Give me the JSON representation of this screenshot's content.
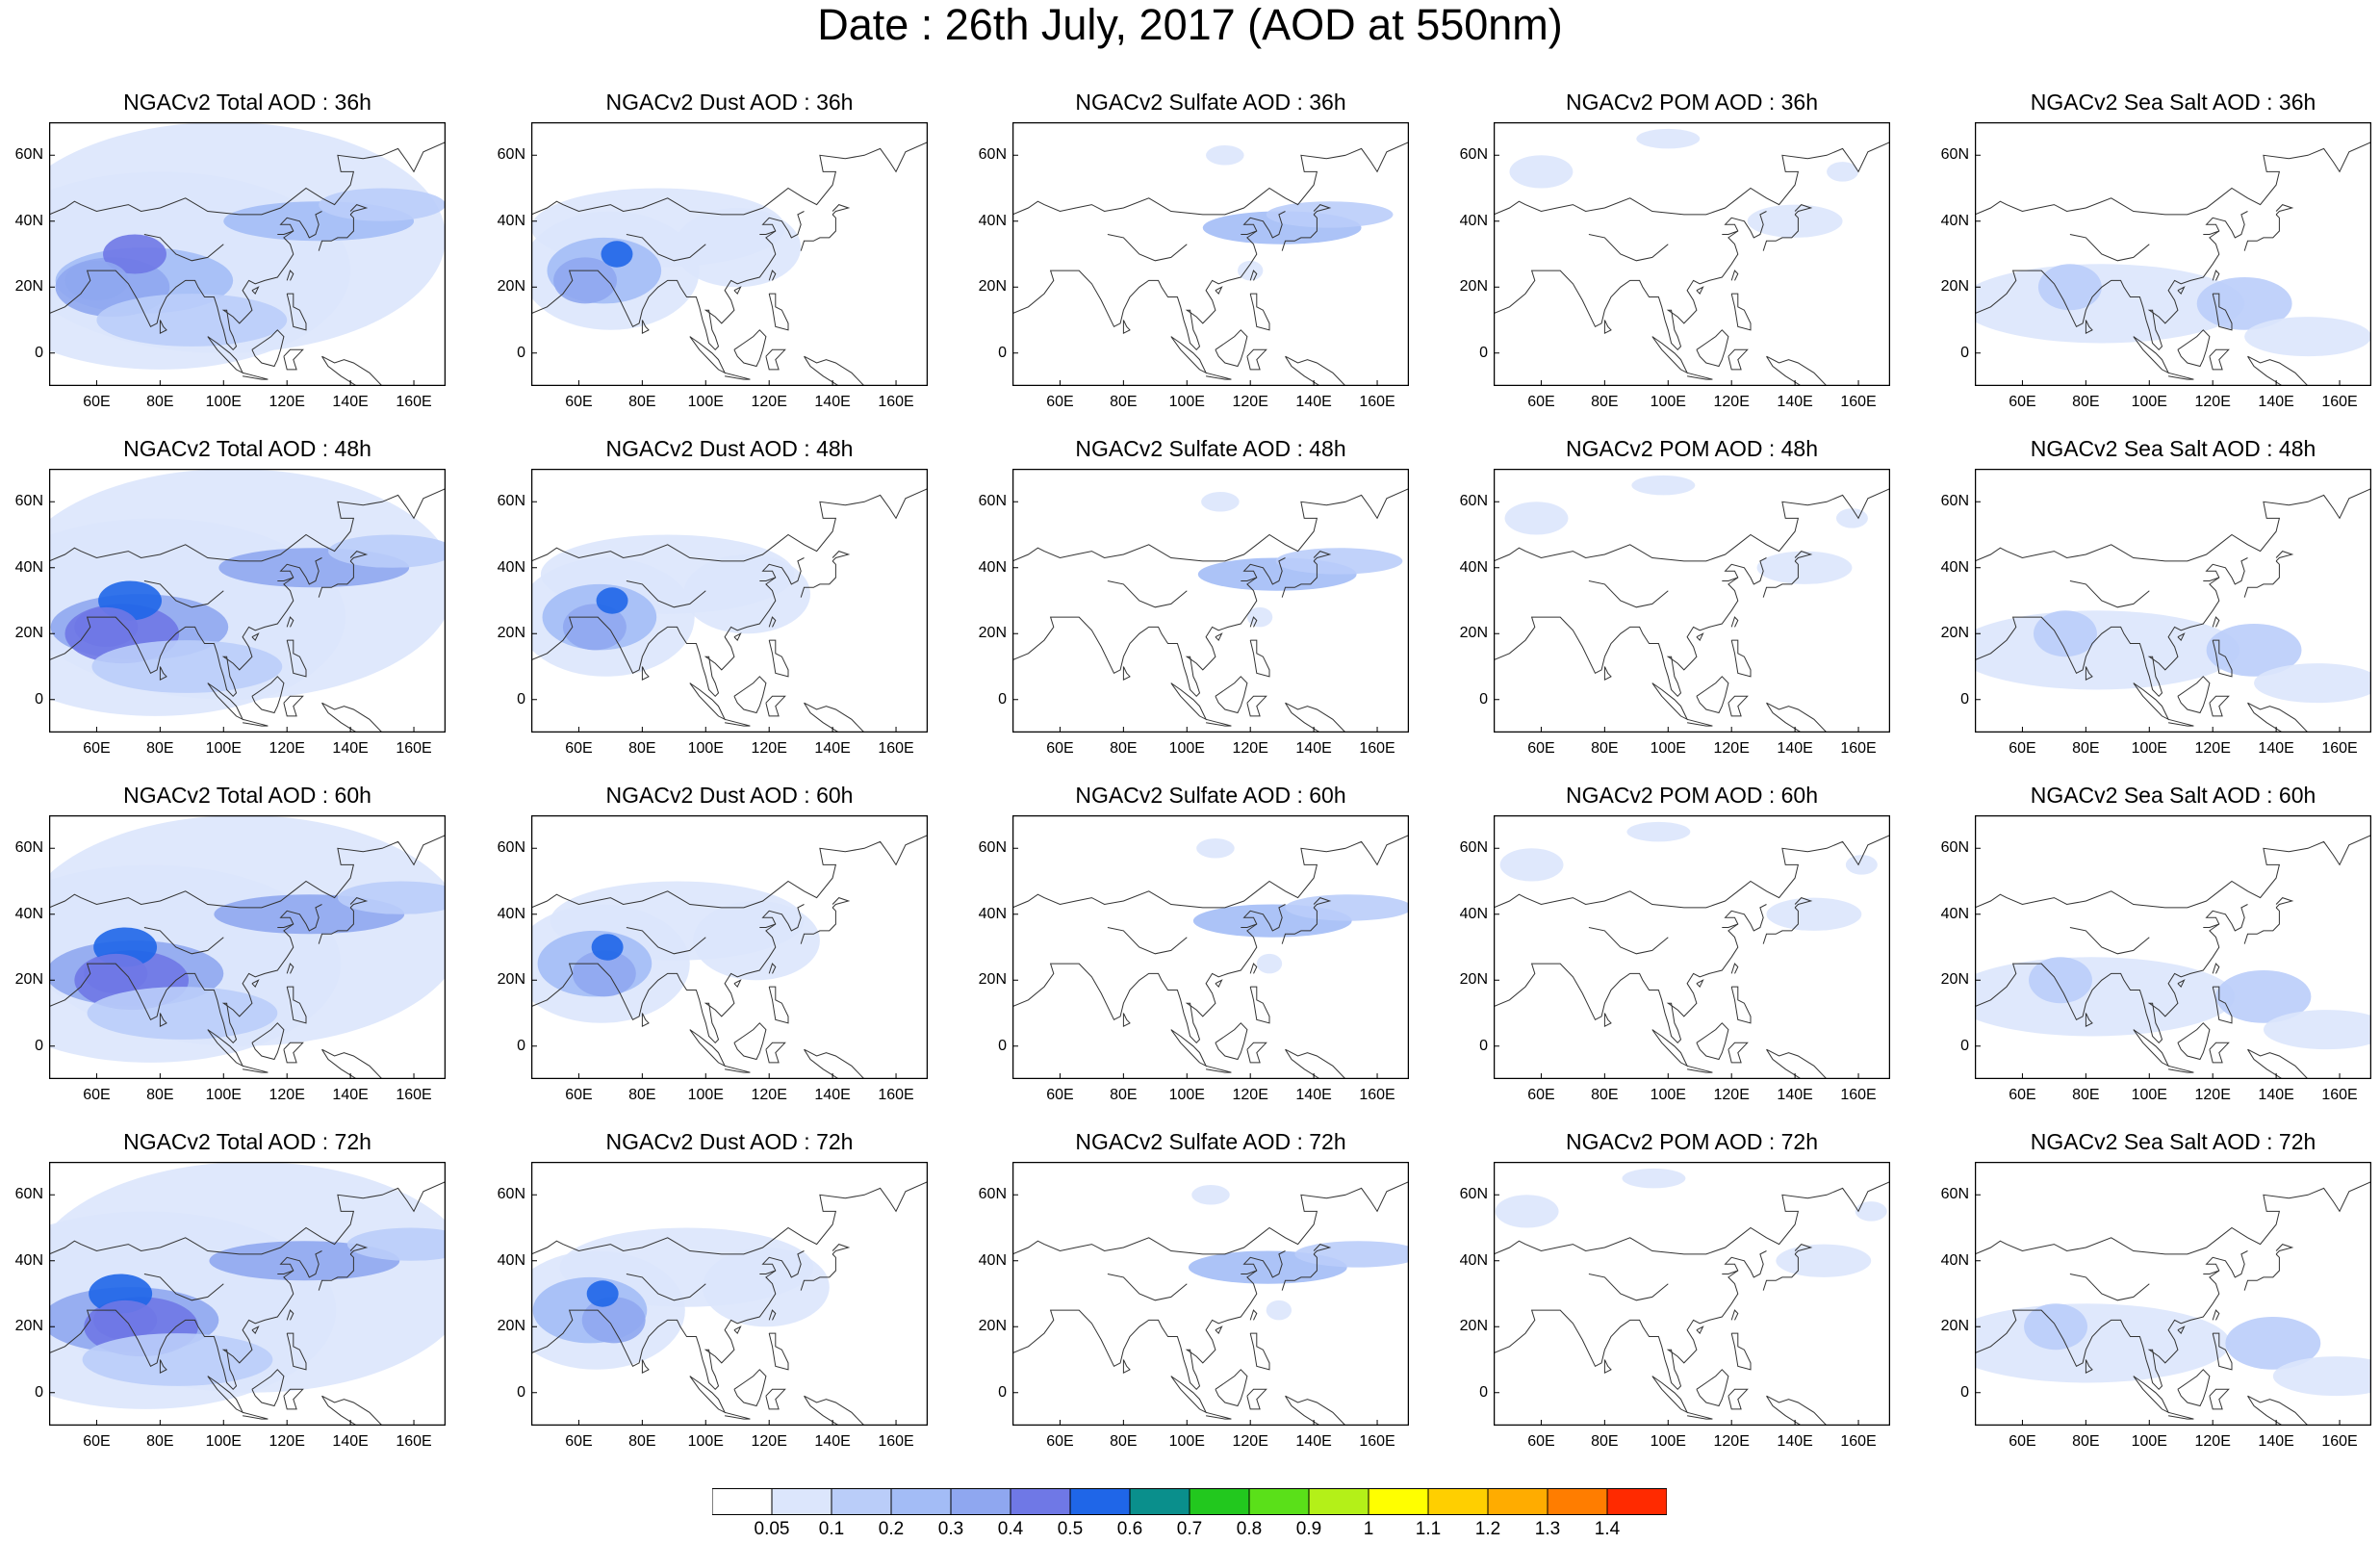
{
  "figure": {
    "title": "Date : 26th July, 2017 (AOD at 550nm)"
  },
  "panels": [
    [
      "NGACv2 Total AOD : 36h",
      "NGACv2 Dust AOD : 36h",
      "NGACv2 Sulfate AOD : 36h",
      "NGACv2 POM AOD : 36h",
      "NGACv2 Sea Salt AOD : 36h"
    ],
    [
      "NGACv2 Total AOD : 48h",
      "NGACv2 Dust AOD : 48h",
      "NGACv2 Sulfate AOD : 48h",
      "NGACv2 POM AOD : 48h",
      "NGACv2 Sea Salt AOD : 48h"
    ],
    [
      "NGACv2 Total AOD : 60h",
      "NGACv2 Dust AOD : 60h",
      "NGACv2 Sulfate AOD : 60h",
      "NGACv2 POM AOD : 60h",
      "NGACv2 Sea Salt AOD : 60h"
    ],
    [
      "NGACv2 Total AOD : 72h",
      "NGACv2 Dust AOD : 72h",
      "NGACv2 Sulfate AOD : 72h",
      "NGACv2 POM AOD : 72h",
      "NGACv2 Sea Salt  AOD : 72h"
    ]
  ],
  "axes": {
    "lat_ticks": [
      "60N",
      "40N",
      "20N",
      "0"
    ],
    "lon_ticks": [
      "60E",
      "80E",
      "100E",
      "120E",
      "140E",
      "160E"
    ]
  },
  "colorbar": {
    "labels": [
      "0.05",
      "0.1",
      "0.2",
      "0.3",
      "0.4",
      "0.5",
      "0.6",
      "0.7",
      "0.8",
      "0.9",
      "1",
      "1.1",
      "1.2",
      "1.3",
      "1.4"
    ],
    "colors": [
      "#ffffff",
      "#dce6fc",
      "#bacdf9",
      "#a3bcf6",
      "#8fa7f0",
      "#6f78e6",
      "#1f66e8",
      "#0a8f8c",
      "#22c81e",
      "#5ae019",
      "#b4f018",
      "#ffff00",
      "#ffcf00",
      "#ffac00",
      "#ff7d00",
      "#ff2a00"
    ]
  }
}
